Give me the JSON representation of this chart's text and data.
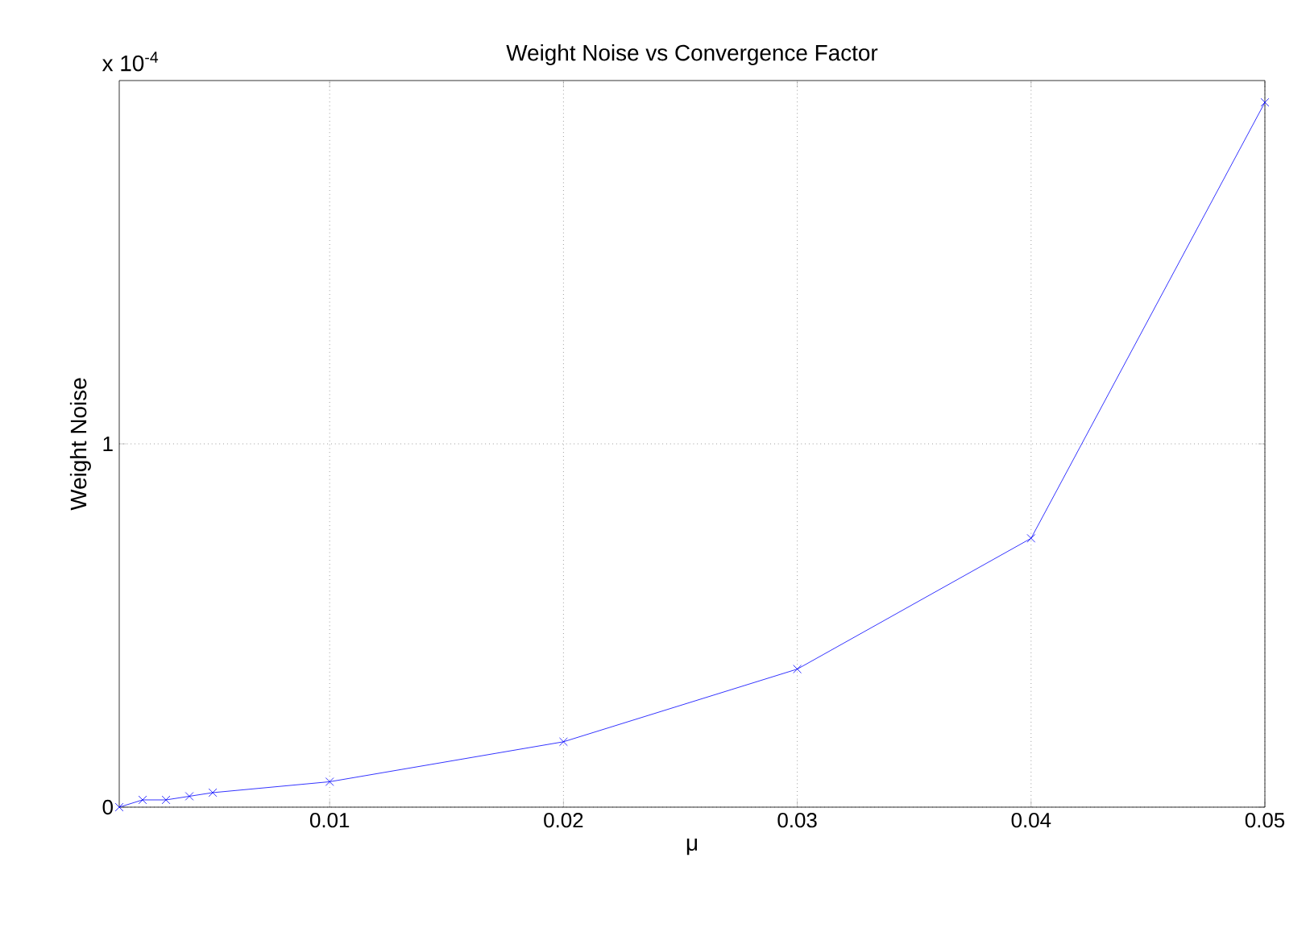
{
  "chart_data": {
    "type": "line",
    "title": "Weight Noise vs Convergence Factor",
    "xlabel": "μ",
    "ylabel": "Weight Noise",
    "annotations": [
      "x 10$^{-4}$"
    ],
    "x": [
      0.001,
      0.002,
      0.003,
      0.004,
      0.005,
      0.01,
      0.02,
      0.03,
      0.04,
      0.05
    ],
    "series": [
      {
        "color": "#0000ff",
        "values": [
          0,
          0.02,
          0.02,
          0.03,
          0.04,
          0.07,
          0.18,
          0.38,
          0.74,
          1.94
        ]
      }
    ],
    "xlim": [
      0.001,
      0.05
    ],
    "ylim": [
      0,
      2
    ],
    "xticks": [
      0.01,
      0.02,
      0.03,
      0.04,
      0.05
    ],
    "yticks": [
      0,
      1
    ],
    "grid": true,
    "marker": "cross",
    "line_style": "solid"
  }
}
